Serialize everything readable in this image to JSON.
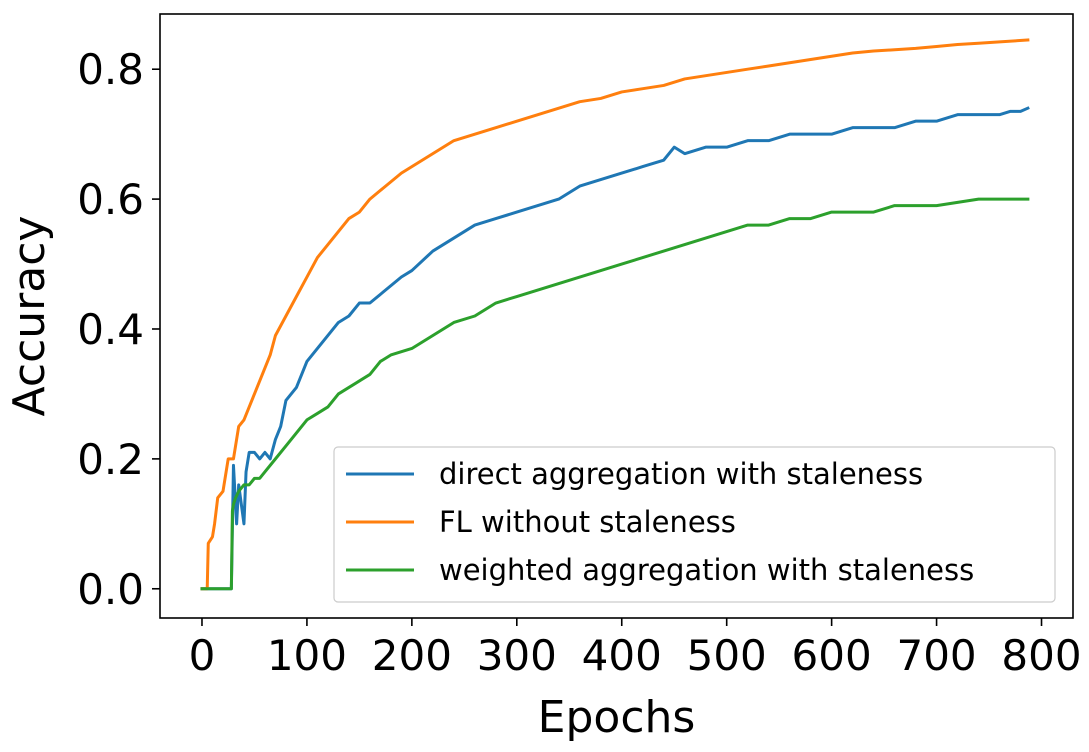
{
  "chart_data": {
    "type": "line",
    "title": "",
    "xlabel": "Epochs",
    "ylabel": "Accuracy",
    "xlim": [
      -40,
      830
    ],
    "ylim": [
      -0.045,
      0.885
    ],
    "x_ticks": [
      0,
      100,
      200,
      300,
      400,
      500,
      600,
      700,
      800
    ],
    "x_tick_labels": [
      "0",
      "100",
      "200",
      "300",
      "400",
      "500",
      "600",
      "700",
      "800"
    ],
    "y_ticks": [
      0.0,
      0.2,
      0.4,
      0.6,
      0.8
    ],
    "y_tick_labels": [
      "0.0",
      "0.2",
      "0.4",
      "0.6",
      "0.8"
    ],
    "grid": false,
    "legend_position": "lower-right",
    "series": [
      {
        "name": "direct aggregation with staleness",
        "color": "#1f77b4",
        "x": [
          0,
          28,
          30,
          33,
          35,
          40,
          42,
          45,
          50,
          55,
          60,
          65,
          70,
          75,
          80,
          90,
          100,
          110,
          120,
          130,
          140,
          150,
          160,
          175,
          190,
          200,
          220,
          240,
          260,
          280,
          300,
          320,
          340,
          360,
          380,
          400,
          420,
          440,
          450,
          460,
          480,
          500,
          520,
          540,
          560,
          580,
          600,
          620,
          640,
          660,
          680,
          700,
          720,
          740,
          760,
          770,
          780,
          787
        ],
        "y": [
          0.0,
          0.0,
          0.19,
          0.1,
          0.16,
          0.1,
          0.18,
          0.21,
          0.21,
          0.2,
          0.21,
          0.2,
          0.23,
          0.25,
          0.29,
          0.31,
          0.35,
          0.37,
          0.39,
          0.41,
          0.42,
          0.44,
          0.44,
          0.46,
          0.48,
          0.49,
          0.52,
          0.54,
          0.56,
          0.57,
          0.58,
          0.59,
          0.6,
          0.62,
          0.63,
          0.64,
          0.65,
          0.66,
          0.68,
          0.67,
          0.68,
          0.68,
          0.69,
          0.69,
          0.7,
          0.7,
          0.7,
          0.71,
          0.71,
          0.71,
          0.72,
          0.72,
          0.73,
          0.73,
          0.73,
          0.735,
          0.735,
          0.74
        ]
      },
      {
        "name": "FL without staleness",
        "color": "#ff7f0e",
        "x": [
          0,
          5,
          6,
          10,
          12,
          15,
          20,
          25,
          30,
          35,
          40,
          45,
          50,
          55,
          60,
          65,
          70,
          80,
          90,
          100,
          110,
          120,
          130,
          140,
          150,
          160,
          175,
          190,
          200,
          220,
          240,
          260,
          280,
          300,
          320,
          340,
          360,
          380,
          400,
          420,
          440,
          460,
          480,
          500,
          520,
          540,
          560,
          580,
          600,
          620,
          640,
          660,
          680,
          700,
          720,
          740,
          760,
          787
        ],
        "y": [
          0.0,
          0.0,
          0.07,
          0.08,
          0.1,
          0.14,
          0.15,
          0.2,
          0.2,
          0.25,
          0.26,
          0.28,
          0.3,
          0.32,
          0.34,
          0.36,
          0.39,
          0.42,
          0.45,
          0.48,
          0.51,
          0.53,
          0.55,
          0.57,
          0.58,
          0.6,
          0.62,
          0.64,
          0.65,
          0.67,
          0.69,
          0.7,
          0.71,
          0.72,
          0.73,
          0.74,
          0.75,
          0.755,
          0.765,
          0.77,
          0.775,
          0.785,
          0.79,
          0.795,
          0.8,
          0.805,
          0.81,
          0.815,
          0.82,
          0.825,
          0.828,
          0.83,
          0.832,
          0.835,
          0.838,
          0.84,
          0.842,
          0.845
        ]
      },
      {
        "name": "weighted aggregation with staleness",
        "color": "#2ca02c",
        "x": [
          0,
          28,
          29,
          30,
          32,
          35,
          40,
          45,
          50,
          55,
          60,
          70,
          80,
          90,
          100,
          110,
          120,
          130,
          140,
          150,
          160,
          170,
          180,
          200,
          220,
          240,
          260,
          280,
          300,
          320,
          340,
          360,
          380,
          400,
          420,
          440,
          460,
          480,
          500,
          520,
          540,
          560,
          580,
          600,
          620,
          640,
          660,
          680,
          700,
          720,
          740,
          760,
          787
        ],
        "y": [
          0.0,
          0.0,
          0.12,
          0.13,
          0.14,
          0.15,
          0.16,
          0.16,
          0.17,
          0.17,
          0.18,
          0.2,
          0.22,
          0.24,
          0.26,
          0.27,
          0.28,
          0.3,
          0.31,
          0.32,
          0.33,
          0.35,
          0.36,
          0.37,
          0.39,
          0.41,
          0.42,
          0.44,
          0.45,
          0.46,
          0.47,
          0.48,
          0.49,
          0.5,
          0.51,
          0.52,
          0.53,
          0.54,
          0.55,
          0.56,
          0.56,
          0.57,
          0.57,
          0.58,
          0.58,
          0.58,
          0.59,
          0.59,
          0.59,
          0.595,
          0.6,
          0.6,
          0.6
        ]
      }
    ]
  }
}
